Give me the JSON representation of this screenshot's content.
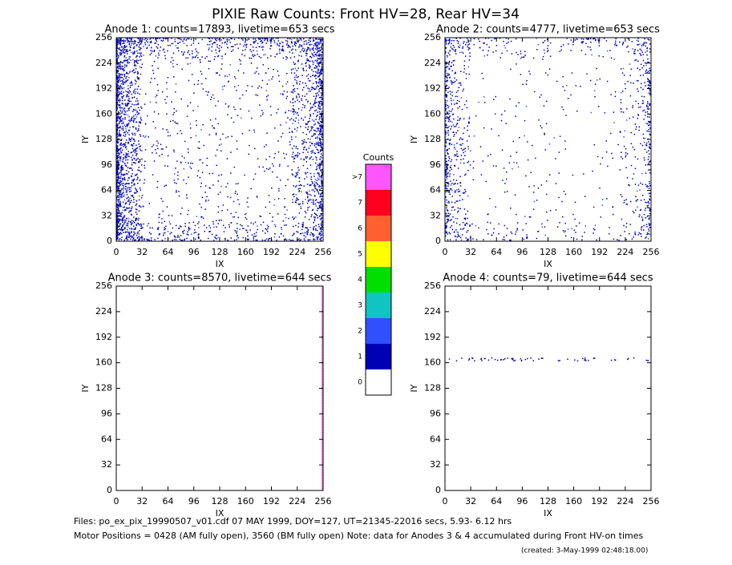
{
  "title": "PIXIE Raw Counts:  Front HV=28, Rear HV=34",
  "panels": [
    {
      "title": "Anode 1: counts=17893, livetime=653 secs",
      "x_label": "IX",
      "y_label": "IY"
    },
    {
      "title": "Anode 2: counts=4777, livetime=653 secs",
      "x_label": "IX",
      "y_label": "IY"
    },
    {
      "title": "Anode 3: counts=8570, livetime=644 secs",
      "x_label": "IX",
      "y_label": "IY"
    },
    {
      "title": "Anode 4: counts=79, livetime=644 secs",
      "x_label": "IX",
      "y_label": "IY"
    }
  ],
  "axis": {
    "lim": [
      0,
      256
    ],
    "ticks": [
      0,
      32,
      64,
      96,
      128,
      160,
      192,
      224,
      256
    ]
  },
  "colorbar": {
    "title": "Counts",
    "levels": [
      {
        "label": "0",
        "color": "#ffffff"
      },
      {
        "label": "1",
        "color": "#0000b4"
      },
      {
        "label": "2",
        "color": "#3050ff"
      },
      {
        "label": "3",
        "color": "#10c4c4"
      },
      {
        "label": "4",
        "color": "#00e000"
      },
      {
        "label": "5",
        "color": "#ffff00"
      },
      {
        "label": "6",
        "color": "#ff6030"
      },
      {
        "label": "7",
        "color": "#ff0020"
      },
      {
        "label": ">7",
        "color": "#ff55ff"
      }
    ]
  },
  "footer": [
    "Files: po_ex_pix_19990507_v01.cdf    07 MAY 1999, DOY=127, UT=21345-22016 secs,  5.93- 6.12 hrs",
    "Motor Positions = 0428 (AM fully open), 3560 (BM fully open)    Note: data for Anodes 3 & 4 accumulated during Front HV-on times",
    "(created:  3-May-1999 02:48:18.00)"
  ]
}
